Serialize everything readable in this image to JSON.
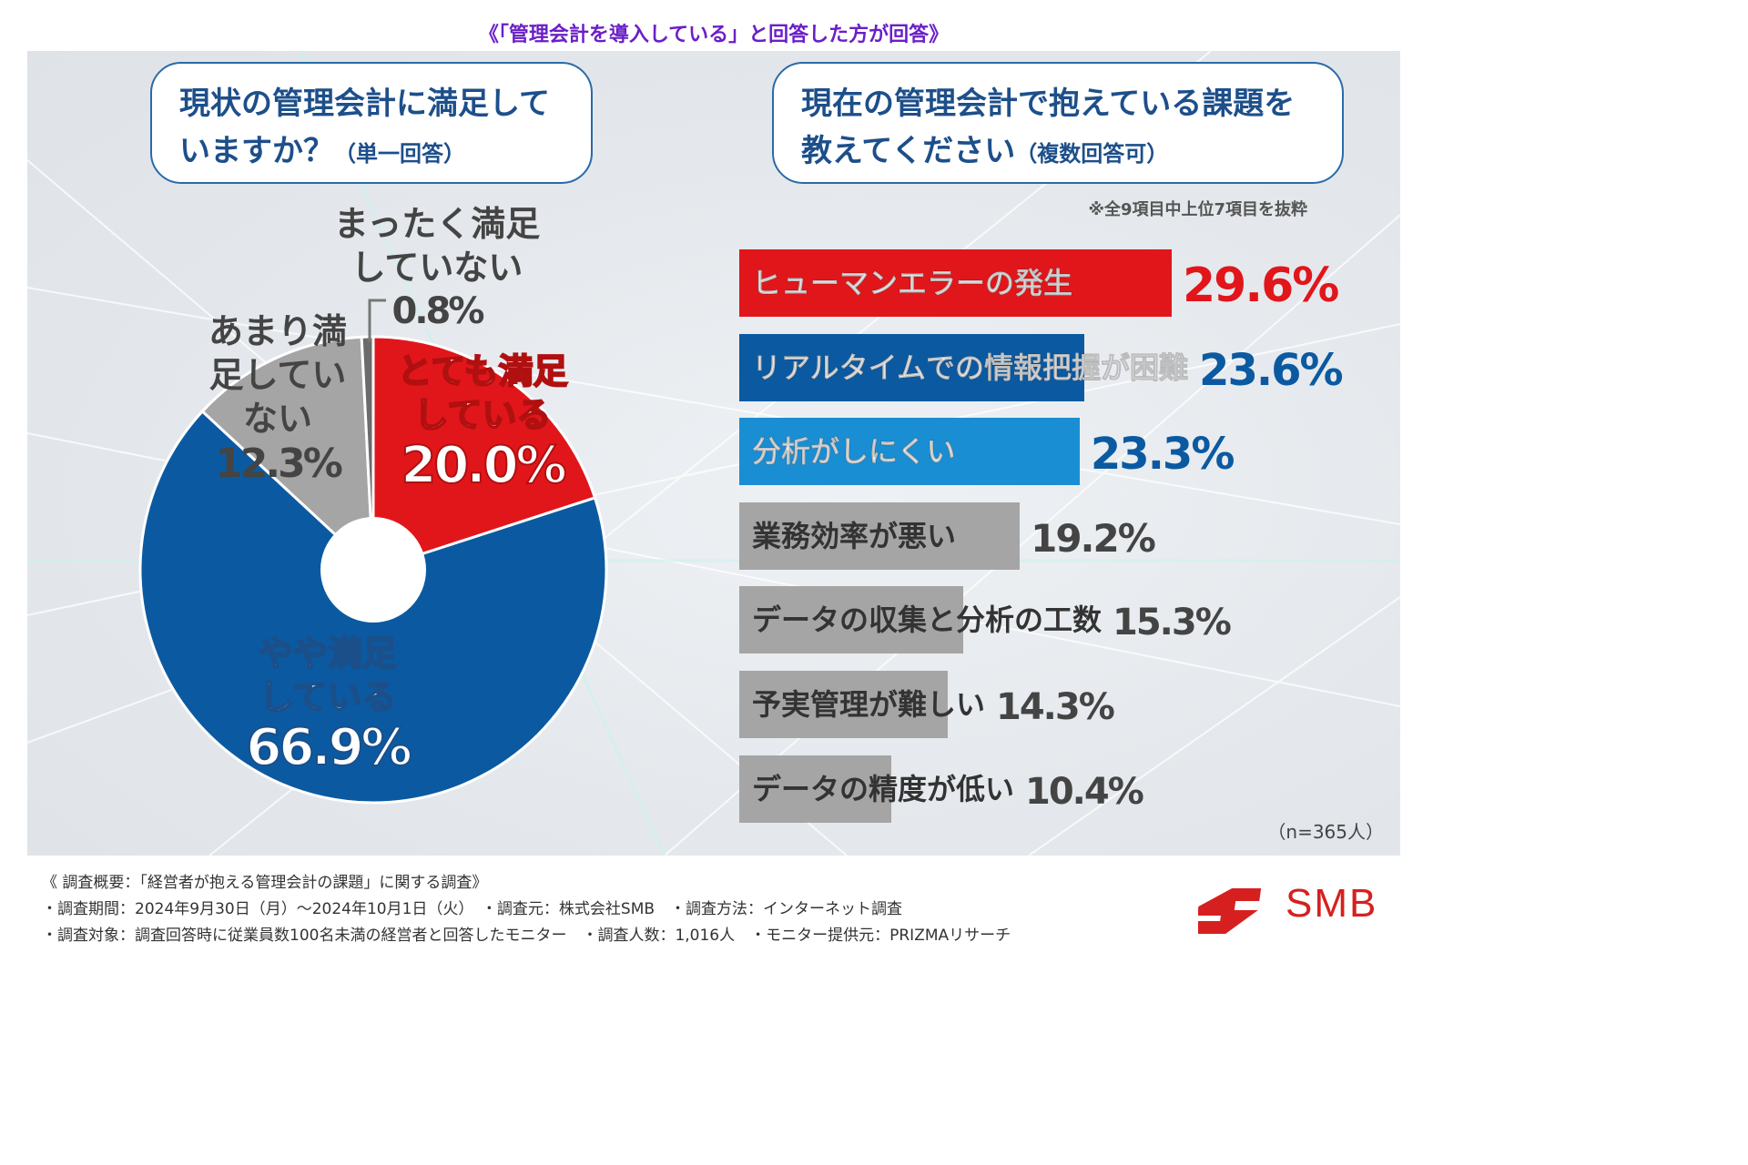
{
  "top_note": "《「管理会計を導入している」と回答した方が回答》",
  "q1": {
    "line1": "現状の管理会計に満足して",
    "line2": "いますか？",
    "sub": "（単一回答）"
  },
  "q2": {
    "line1": "現在の管理会計で抱えている課題を",
    "line2": "教えてください",
    "sub": "（複数回答可）"
  },
  "note_top7": "※全9項目中上位7項目を抜粋",
  "n_label": "（n=365人）",
  "colors": {
    "red": "#e1161b",
    "navy": "#0b5aa1",
    "sky": "#1a8ed3",
    "gray": "#a5a5a5",
    "dark_gray": "#6b6b6b"
  },
  "chart_data": [
    {
      "type": "pie",
      "title": "現状の管理会計に満足していますか？（単一回答）",
      "slices": [
        {
          "label": "とても満足している",
          "value": 20.0,
          "display": "20.0%",
          "color": "#e1161b"
        },
        {
          "label": "やや満足している",
          "value": 66.9,
          "display": "66.9%",
          "color": "#0b5aa1"
        },
        {
          "label": "あまり満足していない",
          "value": 12.3,
          "display": "12.3%",
          "color": "#a5a5a5"
        },
        {
          "label": "まったく満足していない",
          "value": 0.8,
          "display": "0.8%",
          "color": "#6b6b6b"
        }
      ]
    },
    {
      "type": "bar",
      "orientation": "horizontal",
      "title": "現在の管理会計で抱えている課題を教えてください（複数回答可）",
      "xlim": [
        0,
        32
      ],
      "categories": [
        "ヒューマンエラーの発生",
        "リアルタイムでの情報把握が困難",
        "分析がしにくい",
        "業務効率が悪い",
        "データの収集と分析の工数",
        "予実管理が難しい",
        "データの精度が低い"
      ],
      "values": [
        29.6,
        23.6,
        23.3,
        19.2,
        15.3,
        14.3,
        10.4
      ],
      "display": [
        "29.6%",
        "23.6%",
        "23.3%",
        "19.2%",
        "15.3%",
        "14.3%",
        "10.4%"
      ],
      "colors": [
        "#e1161b",
        "#0b5aa1",
        "#1a8ed3",
        "#a5a5a5",
        "#a5a5a5",
        "#a5a5a5",
        "#a5a5a5"
      ],
      "value_colors": [
        "#e1161b",
        "#0b5aa1",
        "#0b5aa1",
        "#444444",
        "#444444",
        "#444444",
        "#444444"
      ]
    }
  ],
  "footer": {
    "line1": "《 調査概要：「経営者が抱える管理会計の課題」に関する調査》",
    "line2": "・調査期間：2024年9月30日（月）〜2024年10月1日（火）　・調査元：株式会社SMB　・調査方法：インターネット調査",
    "line3": "・調査対象：調査回答時に従業員数100名未満の経営者と回答したモニター　・調査人数：1,016人　・モニター提供元：PRIZMAリサーチ"
  },
  "logo_text": "SMB"
}
